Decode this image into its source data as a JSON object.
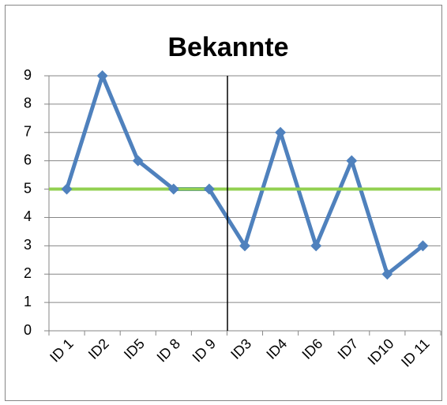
{
  "chart_data": {
    "type": "line",
    "title": "Bekannte",
    "categories": [
      "ID 1",
      "ID2",
      "ID5",
      "ID 8",
      "ID 9",
      "ID3",
      "ID4",
      "ID6",
      "ID7",
      "ID10",
      "ID 11"
    ],
    "series": [
      {
        "color": "#4f81bd",
        "values": [
          5,
          9,
          6,
          5,
          5,
          3,
          7,
          3,
          6,
          2,
          3
        ]
      }
    ],
    "reference_lines": [
      {
        "value": 5,
        "color": "#92d050"
      }
    ],
    "ylim": [
      0,
      9
    ],
    "yticks": [
      0,
      1,
      2,
      3,
      4,
      5,
      6,
      7,
      8,
      9
    ],
    "grid": true
  }
}
